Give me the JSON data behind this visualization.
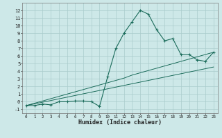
{
  "xlabel": "Humidex (Indice chaleur)",
  "bg_color": "#cde8e8",
  "grid_color": "#aacccc",
  "line_color": "#1a6b5a",
  "x_data": [
    0,
    1,
    2,
    3,
    4,
    5,
    6,
    7,
    8,
    9,
    10,
    11,
    12,
    13,
    14,
    15,
    16,
    17,
    18,
    19,
    20,
    21,
    22,
    23
  ],
  "y_main": [
    -0.5,
    -0.5,
    -0.3,
    -0.4,
    0.0,
    0.0,
    0.1,
    0.1,
    0.0,
    -0.6,
    3.3,
    7.0,
    9.0,
    10.5,
    12.0,
    11.5,
    9.5,
    8.0,
    8.3,
    6.2,
    6.2,
    5.5,
    5.3,
    6.5
  ],
  "y_line1": [
    -0.5,
    -0.28,
    -0.06,
    0.16,
    0.38,
    0.6,
    0.82,
    1.04,
    1.26,
    1.48,
    1.7,
    1.92,
    2.14,
    2.36,
    2.58,
    2.8,
    3.02,
    3.24,
    3.46,
    3.68,
    3.9,
    4.12,
    4.34,
    4.56
  ],
  "y_line2": [
    -0.5,
    -0.2,
    0.1,
    0.4,
    0.7,
    1.0,
    1.3,
    1.6,
    1.9,
    2.2,
    2.5,
    2.8,
    3.1,
    3.5,
    3.8,
    4.1,
    4.4,
    4.7,
    5.0,
    5.3,
    5.6,
    5.9,
    6.2,
    6.5
  ],
  "xlim": [
    -0.5,
    23.5
  ],
  "ylim": [
    -1.5,
    13.0
  ],
  "yticks": [
    -1,
    0,
    1,
    2,
    3,
    4,
    5,
    6,
    7,
    8,
    9,
    10,
    11,
    12
  ],
  "xticks": [
    0,
    1,
    2,
    3,
    4,
    5,
    6,
    7,
    8,
    9,
    10,
    11,
    12,
    13,
    14,
    15,
    16,
    17,
    18,
    19,
    20,
    21,
    22,
    23
  ]
}
